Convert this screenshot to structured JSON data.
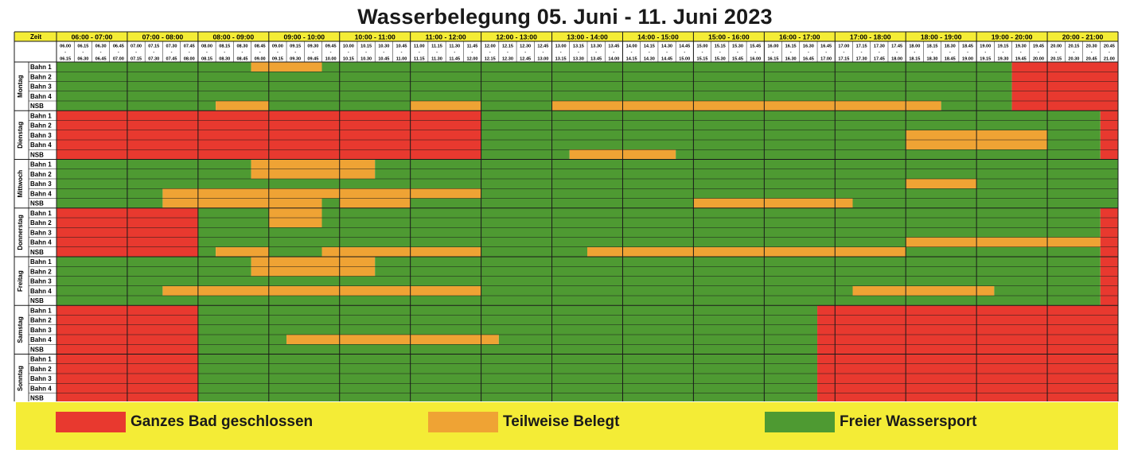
{
  "title": "Wasserbelegung 05. Juni - 11. Juni 2023",
  "colors": {
    "closed": "#e8392f",
    "partial": "#efa334",
    "free": "#4e9a32",
    "header_bg": "#f4ec36",
    "grid_line": "#1a1a1a"
  },
  "table": {
    "corner_label": "Zeit",
    "hours": [
      "06:00 - 07:00",
      "07:00 - 08:00",
      "08:00 - 09:00",
      "09:00 - 10:00",
      "10:00 - 11:00",
      "11:00 - 12:00",
      "12:00 - 13:00",
      "13:00 - 14:00",
      "14:00 - 15:00",
      "15:00 - 16:00",
      "16:00 - 17:00",
      "17:00 - 18:00",
      "18:00 - 19:00",
      "19:00 - 20:00",
      "20:00 - 21:00"
    ],
    "slots": [
      [
        "06.00",
        "06.15"
      ],
      [
        "06.15",
        "06.30"
      ],
      [
        "06.30",
        "06.45"
      ],
      [
        "06.45",
        "07.00"
      ],
      [
        "07.00",
        "07.15"
      ],
      [
        "07.15",
        "07.30"
      ],
      [
        "07.30",
        "07.45"
      ],
      [
        "07.45",
        "08.00"
      ],
      [
        "08.00",
        "08.15"
      ],
      [
        "08.15",
        "08.30"
      ],
      [
        "08.30",
        "08.45"
      ],
      [
        "08.45",
        "09.00"
      ],
      [
        "09.00",
        "09.15"
      ],
      [
        "09.15",
        "09.30"
      ],
      [
        "09.30",
        "09.45"
      ],
      [
        "09.45",
        "10.00"
      ],
      [
        "10.00",
        "10.15"
      ],
      [
        "10.15",
        "10.30"
      ],
      [
        "10.30",
        "10.45"
      ],
      [
        "10.45",
        "11.00"
      ],
      [
        "11.00",
        "11.15"
      ],
      [
        "11.15",
        "11.30"
      ],
      [
        "11.30",
        "11.45"
      ],
      [
        "11.45",
        "12.00"
      ],
      [
        "12.00",
        "12.15"
      ],
      [
        "12.15",
        "12.30"
      ],
      [
        "12.30",
        "12.45"
      ],
      [
        "12.45",
        "13.00"
      ],
      [
        "13.00",
        "13.15"
      ],
      [
        "13.15",
        "13.30"
      ],
      [
        "13.30",
        "13.45"
      ],
      [
        "13.45",
        "14.00"
      ],
      [
        "14.00",
        "14.15"
      ],
      [
        "14.15",
        "14.30"
      ],
      [
        "14.30",
        "14.45"
      ],
      [
        "14.45",
        "15.00"
      ],
      [
        "15.00",
        "15.15"
      ],
      [
        "15.15",
        "15.30"
      ],
      [
        "15.30",
        "15.45"
      ],
      [
        "15.45",
        "16.00"
      ],
      [
        "16.00",
        "16.15"
      ],
      [
        "16.15",
        "16.30"
      ],
      [
        "16.30",
        "16.45"
      ],
      [
        "16.45",
        "17.00"
      ],
      [
        "17.00",
        "17.15"
      ],
      [
        "17.15",
        "17.30"
      ],
      [
        "17.30",
        "17.45"
      ],
      [
        "17.45",
        "18.00"
      ],
      [
        "18.00",
        "18.15"
      ],
      [
        "18.15",
        "18.30"
      ],
      [
        "18.30",
        "18.45"
      ],
      [
        "18.45",
        "19.00"
      ],
      [
        "19.00",
        "19.15"
      ],
      [
        "19.15",
        "19.30"
      ],
      [
        "19.30",
        "19.45"
      ],
      [
        "19.45",
        "20.00"
      ],
      [
        "20.00",
        "20.15"
      ],
      [
        "20.15",
        "20.30"
      ],
      [
        "20.30",
        "20.45"
      ],
      [
        "20.45",
        "21.00"
      ]
    ],
    "lane_labels": [
      "Bahn 1",
      "Bahn 2",
      "Bahn 3",
      "Bahn 4",
      "NSB"
    ],
    "days": [
      {
        "name": "Montag",
        "rows": [
          [
            [
              0,
              10,
              "F"
            ],
            [
              11,
              14,
              "P"
            ],
            [
              15,
              53,
              "F"
            ],
            [
              54,
              59,
              "C"
            ]
          ],
          [
            [
              0,
              53,
              "F"
            ],
            [
              54,
              59,
              "C"
            ]
          ],
          [
            [
              0,
              53,
              "F"
            ],
            [
              54,
              59,
              "C"
            ]
          ],
          [
            [
              0,
              53,
              "F"
            ],
            [
              54,
              59,
              "C"
            ]
          ],
          [
            [
              0,
              8,
              "F"
            ],
            [
              9,
              11,
              "P"
            ],
            [
              12,
              19,
              "F"
            ],
            [
              20,
              23,
              "P"
            ],
            [
              24,
              27,
              "F"
            ],
            [
              28,
              49,
              "P"
            ],
            [
              50,
              53,
              "F"
            ],
            [
              54,
              59,
              "C"
            ]
          ]
        ]
      },
      {
        "name": "Dienstag",
        "rows": [
          [
            [
              0,
              23,
              "C"
            ],
            [
              24,
              58,
              "F"
            ],
            [
              59,
              59,
              "C"
            ]
          ],
          [
            [
              0,
              23,
              "C"
            ],
            [
              24,
              58,
              "F"
            ],
            [
              59,
              59,
              "C"
            ]
          ],
          [
            [
              0,
              23,
              "C"
            ],
            [
              24,
              47,
              "F"
            ],
            [
              48,
              55,
              "P"
            ],
            [
              56,
              58,
              "F"
            ],
            [
              59,
              59,
              "C"
            ]
          ],
          [
            [
              0,
              23,
              "C"
            ],
            [
              24,
              47,
              "F"
            ],
            [
              48,
              55,
              "P"
            ],
            [
              56,
              58,
              "F"
            ],
            [
              59,
              59,
              "C"
            ]
          ],
          [
            [
              0,
              23,
              "C"
            ],
            [
              24,
              28,
              "F"
            ],
            [
              29,
              34,
              "P"
            ],
            [
              35,
              58,
              "F"
            ],
            [
              59,
              59,
              "C"
            ]
          ]
        ]
      },
      {
        "name": "Mittwoch",
        "rows": [
          [
            [
              0,
              10,
              "F"
            ],
            [
              11,
              17,
              "P"
            ],
            [
              18,
              59,
              "F"
            ]
          ],
          [
            [
              0,
              10,
              "F"
            ],
            [
              11,
              17,
              "P"
            ],
            [
              18,
              59,
              "F"
            ]
          ],
          [
            [
              0,
              47,
              "F"
            ],
            [
              48,
              51,
              "P"
            ],
            [
              52,
              59,
              "F"
            ]
          ],
          [
            [
              0,
              5,
              "F"
            ],
            [
              6,
              23,
              "P"
            ],
            [
              24,
              59,
              "F"
            ]
          ],
          [
            [
              0,
              5,
              "F"
            ],
            [
              6,
              14,
              "P"
            ],
            [
              15,
              15,
              "F"
            ],
            [
              16,
              19,
              "P"
            ],
            [
              20,
              23,
              "F"
            ],
            [
              24,
              35,
              "F"
            ],
            [
              36,
              44,
              "P"
            ],
            [
              45,
              59,
              "F"
            ]
          ]
        ]
      },
      {
        "name": "Donnerstag",
        "rows": [
          [
            [
              0,
              7,
              "C"
            ],
            [
              8,
              11,
              "F"
            ],
            [
              12,
              14,
              "P"
            ],
            [
              15,
              58,
              "F"
            ],
            [
              59,
              59,
              "C"
            ]
          ],
          [
            [
              0,
              7,
              "C"
            ],
            [
              8,
              11,
              "F"
            ],
            [
              12,
              14,
              "P"
            ],
            [
              15,
              58,
              "F"
            ],
            [
              59,
              59,
              "C"
            ]
          ],
          [
            [
              0,
              7,
              "C"
            ],
            [
              8,
              58,
              "F"
            ],
            [
              59,
              59,
              "C"
            ]
          ],
          [
            [
              0,
              7,
              "C"
            ],
            [
              8,
              47,
              "F"
            ],
            [
              48,
              58,
              "P"
            ],
            [
              59,
              59,
              "C"
            ]
          ],
          [
            [
              0,
              7,
              "C"
            ],
            [
              8,
              8,
              "F"
            ],
            [
              9,
              11,
              "P"
            ],
            [
              12,
              14,
              "F"
            ],
            [
              15,
              23,
              "P"
            ],
            [
              24,
              29,
              "F"
            ],
            [
              30,
              47,
              "P"
            ],
            [
              48,
              58,
              "F"
            ],
            [
              59,
              59,
              "C"
            ]
          ]
        ]
      },
      {
        "name": "Freitag",
        "rows": [
          [
            [
              0,
              10,
              "F"
            ],
            [
              11,
              17,
              "P"
            ],
            [
              18,
              58,
              "F"
            ],
            [
              59,
              59,
              "C"
            ]
          ],
          [
            [
              0,
              10,
              "F"
            ],
            [
              11,
              17,
              "P"
            ],
            [
              18,
              58,
              "F"
            ],
            [
              59,
              59,
              "C"
            ]
          ],
          [
            [
              0,
              58,
              "F"
            ],
            [
              59,
              59,
              "C"
            ]
          ],
          [
            [
              0,
              5,
              "F"
            ],
            [
              6,
              23,
              "P"
            ],
            [
              24,
              44,
              "F"
            ],
            [
              45,
              52,
              "P"
            ],
            [
              53,
              58,
              "F"
            ],
            [
              59,
              59,
              "C"
            ]
          ],
          [
            [
              0,
              58,
              "F"
            ],
            [
              59,
              59,
              "C"
            ]
          ]
        ]
      },
      {
        "name": "Samstag",
        "rows": [
          [
            [
              0,
              7,
              "C"
            ],
            [
              8,
              42,
              "F"
            ],
            [
              43,
              59,
              "C"
            ]
          ],
          [
            [
              0,
              7,
              "C"
            ],
            [
              8,
              42,
              "F"
            ],
            [
              43,
              59,
              "C"
            ]
          ],
          [
            [
              0,
              7,
              "C"
            ],
            [
              8,
              42,
              "F"
            ],
            [
              43,
              59,
              "C"
            ]
          ],
          [
            [
              0,
              7,
              "C"
            ],
            [
              8,
              12,
              "F"
            ],
            [
              13,
              24,
              "P"
            ],
            [
              25,
              42,
              "F"
            ],
            [
              43,
              59,
              "C"
            ]
          ],
          [
            [
              0,
              7,
              "C"
            ],
            [
              8,
              42,
              "F"
            ],
            [
              43,
              59,
              "C"
            ]
          ]
        ]
      },
      {
        "name": "Sonntag",
        "rows": [
          [
            [
              0,
              7,
              "C"
            ],
            [
              8,
              42,
              "F"
            ],
            [
              43,
              59,
              "C"
            ]
          ],
          [
            [
              0,
              7,
              "C"
            ],
            [
              8,
              42,
              "F"
            ],
            [
              43,
              59,
              "C"
            ]
          ],
          [
            [
              0,
              7,
              "C"
            ],
            [
              8,
              42,
              "F"
            ],
            [
              43,
              59,
              "C"
            ]
          ],
          [
            [
              0,
              7,
              "C"
            ],
            [
              8,
              42,
              "F"
            ],
            [
              43,
              59,
              "C"
            ]
          ],
          [
            [
              0,
              7,
              "C"
            ],
            [
              8,
              42,
              "F"
            ],
            [
              43,
              59,
              "C"
            ]
          ]
        ]
      }
    ]
  },
  "legend": {
    "closed_label": "Ganzes Bad geschlossen",
    "partial_label": "Teilweise Belegt",
    "free_label": "Freier Wassersport"
  }
}
